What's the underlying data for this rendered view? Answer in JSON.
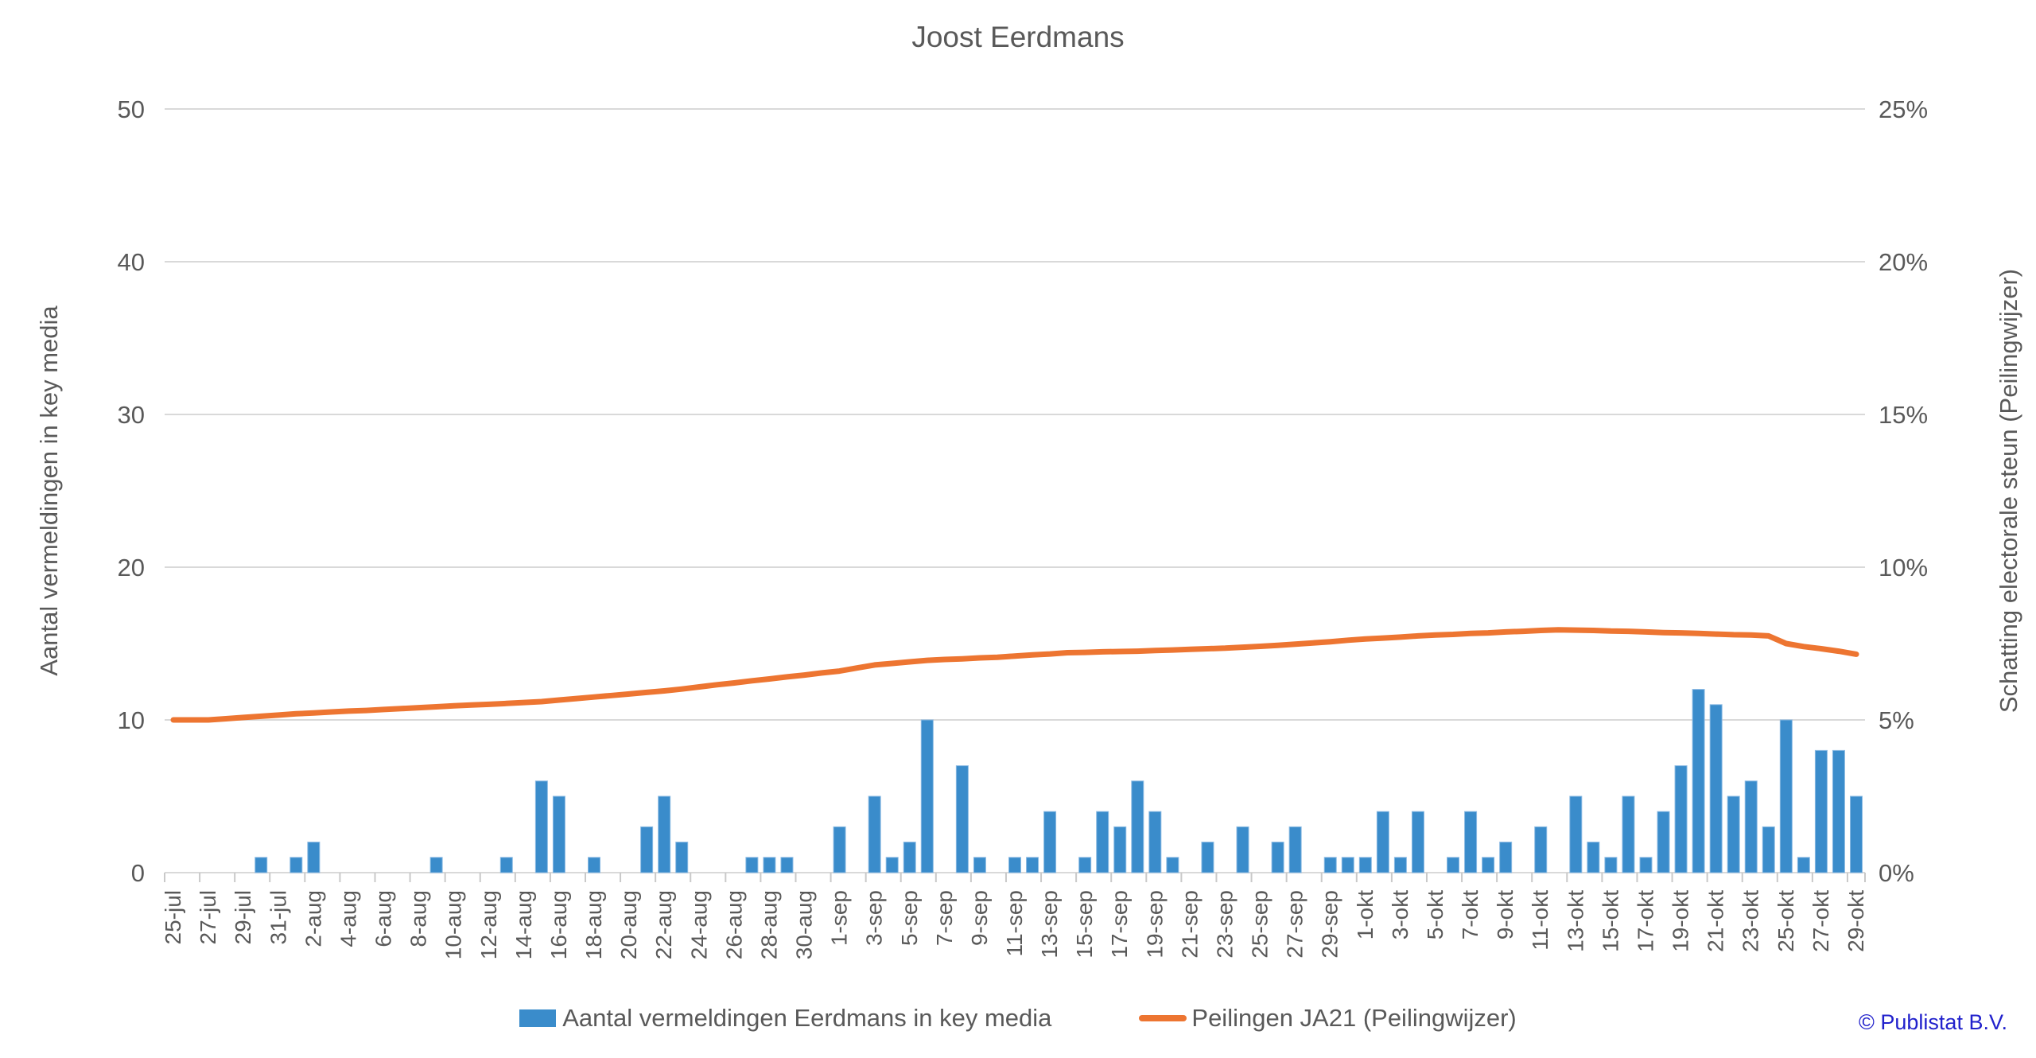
{
  "footer": {
    "copyright": "© Publistat B.V.",
    "copyright_color": "#2121CC"
  },
  "chart_data": {
    "type": "bar",
    "title": "Joost Eerdmans",
    "grid": true,
    "legend_position": "bottom",
    "colors": {
      "bar_fill": "#3A8CCB",
      "bar_edge": "#8ABAE3",
      "line": "#ED7531",
      "grid": "#D9D9D9",
      "axis": "#C9C9C9",
      "text": "#595959"
    },
    "left_axis": {
      "label": "Aantal vermeldingen in key media",
      "min": 0,
      "max": 50,
      "tick_step": 10
    },
    "right_axis": {
      "label": "Schatting electorale steun (Peilingwijzer)",
      "min": 0,
      "max": 25,
      "tick_suffix": "%",
      "tick_step": 5
    },
    "x_label_interval": 2,
    "categories": [
      "25-jul",
      "26-jul",
      "27-jul",
      "28-jul",
      "29-jul",
      "30-jul",
      "31-jul",
      "1-aug",
      "2-aug",
      "3-aug",
      "4-aug",
      "5-aug",
      "6-aug",
      "7-aug",
      "8-aug",
      "9-aug",
      "10-aug",
      "11-aug",
      "12-aug",
      "13-aug",
      "14-aug",
      "15-aug",
      "16-aug",
      "17-aug",
      "18-aug",
      "19-aug",
      "20-aug",
      "21-aug",
      "22-aug",
      "23-aug",
      "24-aug",
      "25-aug",
      "26-aug",
      "27-aug",
      "28-aug",
      "29-aug",
      "30-aug",
      "31-aug",
      "1-sep",
      "2-sep",
      "3-sep",
      "4-sep",
      "5-sep",
      "6-sep",
      "7-sep",
      "8-sep",
      "9-sep",
      "10-sep",
      "11-sep",
      "12-sep",
      "13-sep",
      "14-sep",
      "15-sep",
      "16-sep",
      "17-sep",
      "18-sep",
      "19-sep",
      "20-sep",
      "21-sep",
      "22-sep",
      "23-sep",
      "24-sep",
      "25-sep",
      "26-sep",
      "27-sep",
      "28-sep",
      "29-sep",
      "30-sep",
      "1-okt",
      "2-okt",
      "3-okt",
      "4-okt",
      "5-okt",
      "6-okt",
      "7-okt",
      "8-okt",
      "9-okt",
      "10-okt",
      "11-okt",
      "12-okt",
      "13-okt",
      "14-okt",
      "15-okt",
      "16-okt",
      "17-okt",
      "18-okt",
      "19-okt",
      "20-okt",
      "21-okt",
      "22-okt",
      "23-okt",
      "24-okt",
      "25-okt",
      "26-okt",
      "27-okt",
      "28-okt",
      "29-okt"
    ],
    "series": [
      {
        "name": "Aantal vermeldingen Eerdmans in key media",
        "type": "bar",
        "axis": "left",
        "values": [
          0,
          0,
          0,
          0,
          0,
          1,
          0,
          1,
          2,
          0,
          0,
          0,
          0,
          0,
          0,
          1,
          0,
          0,
          0,
          1,
          0,
          6,
          5,
          0,
          1,
          0,
          0,
          3,
          5,
          2,
          0,
          0,
          0,
          1,
          1,
          1,
          0,
          0,
          3,
          0,
          5,
          1,
          2,
          10,
          0,
          7,
          1,
          0,
          1,
          1,
          4,
          0,
          1,
          4,
          3,
          6,
          4,
          1,
          0,
          2,
          0,
          3,
          0,
          2,
          3,
          0,
          1,
          1,
          1,
          4,
          1,
          4,
          0,
          1,
          4,
          1,
          2,
          0,
          3,
          0,
          5,
          2,
          1,
          5,
          1,
          4,
          7,
          12,
          11,
          5,
          6,
          3,
          10,
          1,
          8,
          8,
          5
        ]
      },
      {
        "name": "Peilingen JA21 (Peilingwijzer)",
        "type": "line",
        "axis": "right",
        "values_percent": [
          5.0,
          5.0,
          5.0,
          5.04,
          5.08,
          5.12,
          5.16,
          5.2,
          5.23,
          5.26,
          5.29,
          5.31,
          5.34,
          5.37,
          5.4,
          5.43,
          5.46,
          5.49,
          5.51,
          5.54,
          5.57,
          5.6,
          5.65,
          5.7,
          5.75,
          5.8,
          5.85,
          5.9,
          5.95,
          6.01,
          6.08,
          6.15,
          6.21,
          6.28,
          6.34,
          6.41,
          6.47,
          6.54,
          6.6,
          6.7,
          6.8,
          6.85,
          6.9,
          6.95,
          6.98,
          7.0,
          7.03,
          7.05,
          7.09,
          7.13,
          7.16,
          7.2,
          7.21,
          7.23,
          7.24,
          7.25,
          7.27,
          7.29,
          7.31,
          7.33,
          7.35,
          7.38,
          7.41,
          7.44,
          7.48,
          7.52,
          7.56,
          7.61,
          7.65,
          7.68,
          7.71,
          7.75,
          7.78,
          7.8,
          7.83,
          7.85,
          7.88,
          7.9,
          7.93,
          7.95,
          7.94,
          7.93,
          7.91,
          7.9,
          7.88,
          7.86,
          7.85,
          7.83,
          7.81,
          7.79,
          7.78,
          7.75,
          7.5,
          7.4,
          7.33,
          7.25,
          7.15
        ]
      }
    ]
  }
}
